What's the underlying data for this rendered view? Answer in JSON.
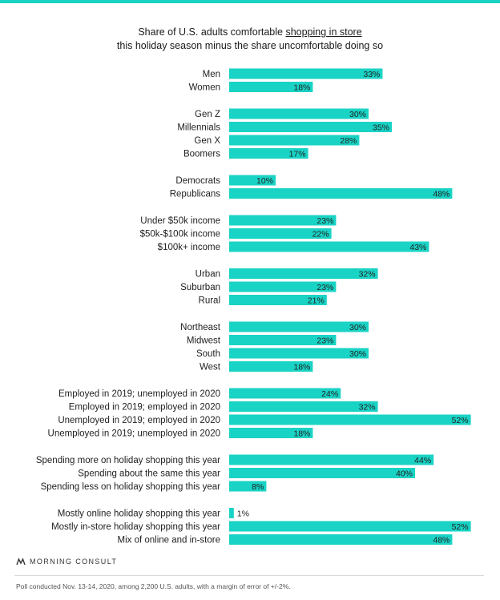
{
  "title_line1_pre": "Share of U.S. adults comfortable ",
  "title_line1_link": "shopping in store",
  "title_line2": "this holiday season minus the share uncomfortable doing so",
  "brand": "MORNING CONSULT",
  "footnote": "Poll conducted Nov. 13-14, 2020, among 2,200 U.S. adults, with a margin of error of +/-2%.",
  "colors": {
    "bar": "#19D3C5",
    "text": "#222222"
  },
  "chart_data": {
    "type": "bar",
    "orientation": "horizontal",
    "groups": [
      {
        "categories": [
          "Men",
          "Women"
        ],
        "values": [
          33,
          18
        ]
      },
      {
        "categories": [
          "Gen Z",
          "Millennials",
          "Gen X",
          "Boomers"
        ],
        "values": [
          30,
          35,
          28,
          17
        ]
      },
      {
        "categories": [
          "Democrats",
          "Republicans"
        ],
        "values": [
          10,
          48
        ]
      },
      {
        "categories": [
          "Under $50k income",
          "$50k-$100k income",
          "$100k+ income"
        ],
        "values": [
          23,
          22,
          43
        ]
      },
      {
        "categories": [
          "Urban",
          "Suburban",
          "Rural"
        ],
        "values": [
          32,
          23,
          21
        ]
      },
      {
        "categories": [
          "Northeast",
          "Midwest",
          "South",
          "West"
        ],
        "values": [
          30,
          23,
          30,
          18
        ]
      },
      {
        "categories": [
          "Employed in 2019; unemployed in 2020",
          "Employed in 2019; employed in 2020",
          "Unemployed in 2019; employed in 2020",
          "Unemployed in 2019; unemployed in 2020"
        ],
        "values": [
          24,
          32,
          52,
          18
        ]
      },
      {
        "categories": [
          "Spending more on holiday shopping this year",
          "Spending about the same this year",
          "Spending less on holiday shopping this year"
        ],
        "values": [
          44,
          40,
          8
        ]
      },
      {
        "categories": [
          "Mostly online holiday shopping this year",
          "Mostly in-store holiday shopping this year",
          "Mix of online and in-store"
        ],
        "values": [
          1,
          52,
          48
        ]
      }
    ],
    "value_suffix": "%",
    "xlim": [
      0,
      52
    ]
  }
}
